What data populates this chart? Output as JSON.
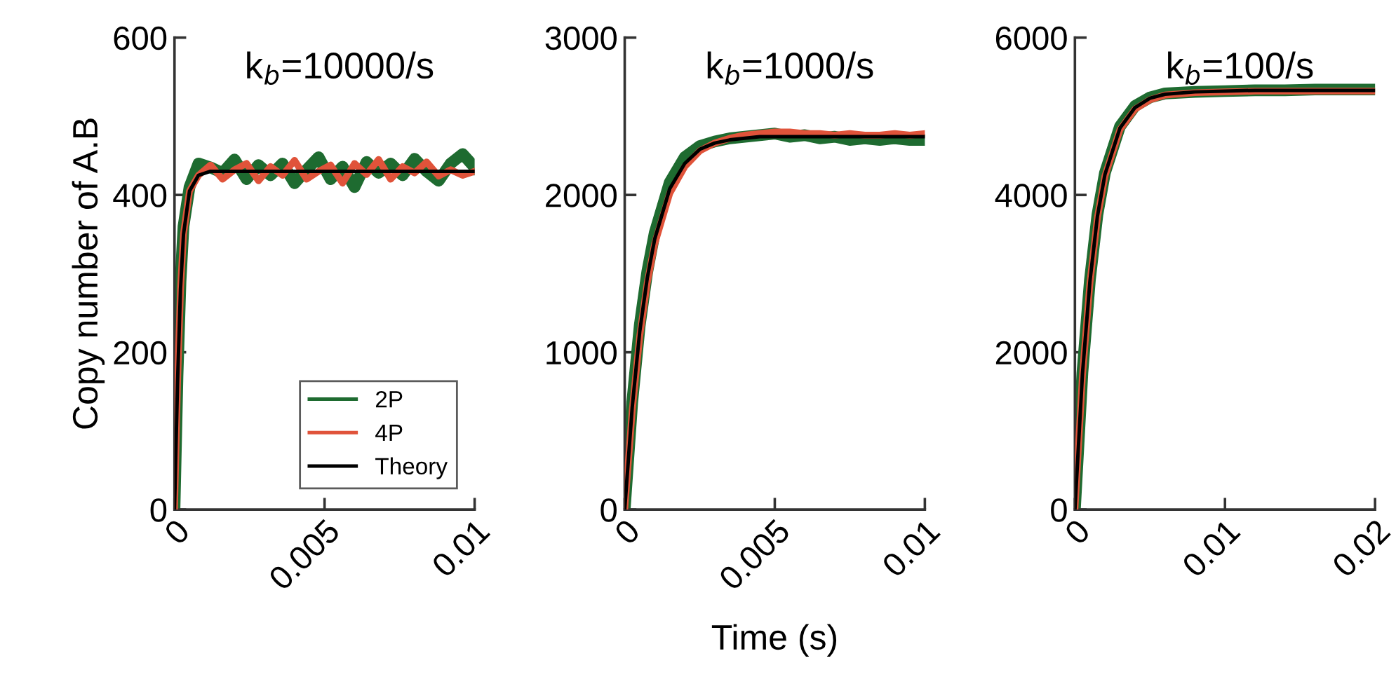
{
  "chart_data": [
    {
      "type": "line",
      "title": "k$_{b}$=10000/s",
      "ylabel": "Copy number of A.B",
      "xlim": [
        0,
        0.01
      ],
      "ylim": [
        0,
        600
      ],
      "xticks": [
        0,
        0.005,
        0.01
      ],
      "yticks": [
        0,
        200,
        400,
        600
      ],
      "grid": false,
      "legend": "bottom right",
      "marker": "none",
      "line_style": "solid",
      "x": [
        0,
        0.0001,
        0.0002,
        0.0003,
        0.0005,
        0.0008,
        0.0012,
        0.0016,
        0.002,
        0.0024,
        0.0028,
        0.0032,
        0.0036,
        0.004,
        0.0044,
        0.0048,
        0.0052,
        0.0056,
        0.006,
        0.0064,
        0.0068,
        0.0072,
        0.0076,
        0.008,
        0.0084,
        0.0088,
        0.0092,
        0.0096,
        0.01
      ],
      "series": [
        {
          "name": "2P",
          "color": "#1e6b30",
          "values": [
            0,
            170,
            290,
            360,
            410,
            440,
            435,
            428,
            445,
            420,
            438,
            425,
            440,
            415,
            432,
            448,
            420,
            436,
            410,
            442,
            428,
            440,
            425,
            446,
            430,
            418,
            440,
            452,
            435
          ]
        },
        {
          "name": "4P",
          "color": "#e0533a",
          "values": [
            0,
            160,
            280,
            350,
            405,
            425,
            438,
            420,
            432,
            440,
            418,
            436,
            425,
            444,
            420,
            430,
            438,
            415,
            440,
            426,
            445,
            420,
            436,
            428,
            442,
            424,
            432,
            425,
            430
          ]
        },
        {
          "name": "Theory",
          "color": "#000000",
          "values": [
            0,
            160,
            280,
            350,
            405,
            425,
            430,
            430,
            430,
            430,
            430,
            430,
            430,
            430,
            430,
            430,
            430,
            430,
            430,
            430,
            430,
            430,
            430,
            430,
            430,
            430,
            430,
            430,
            430
          ]
        }
      ]
    },
    {
      "type": "line",
      "title": "k$_{b}$=1000/s",
      "xlabel": "Time (s)",
      "xlim": [
        0,
        0.01
      ],
      "ylim": [
        0,
        3000
      ],
      "xticks": [
        0,
        0.005,
        0.01
      ],
      "yticks": [
        0,
        1000,
        2000,
        3000
      ],
      "grid": false,
      "marker": "none",
      "line_style": "solid",
      "x": [
        0,
        0.00025,
        0.0005,
        0.00075,
        0.001,
        0.0015,
        0.002,
        0.0025,
        0.003,
        0.0035,
        0.004,
        0.0045,
        0.005,
        0.0055,
        0.006,
        0.0065,
        0.007,
        0.0075,
        0.008,
        0.0085,
        0.009,
        0.0095,
        0.01
      ],
      "series": [
        {
          "color": "#1e6b30",
          "values": [
            0,
            680,
            1170,
            1510,
            1760,
            2080,
            2240,
            2310,
            2340,
            2360,
            2370,
            2380,
            2390,
            2370,
            2380,
            2360,
            2370,
            2350,
            2360,
            2350,
            2360,
            2350,
            2350
          ]
        },
        {
          "color": "#e0533a",
          "values": [
            0,
            630,
            1100,
            1440,
            1690,
            2010,
            2180,
            2280,
            2330,
            2360,
            2380,
            2390,
            2400,
            2400,
            2390,
            2390,
            2380,
            2390,
            2380,
            2380,
            2390,
            2380,
            2390
          ]
        },
        {
          "color": "#000000",
          "values": [
            0,
            650,
            1130,
            1470,
            1720,
            2040,
            2200,
            2290,
            2330,
            2350,
            2360,
            2370,
            2370,
            2370,
            2370,
            2370,
            2370,
            2370,
            2370,
            2370,
            2370,
            2370,
            2370
          ]
        }
      ]
    },
    {
      "type": "line",
      "title": "k$_{b}$=100/s",
      "xlim": [
        0,
        0.02
      ],
      "ylim": [
        0,
        6000
      ],
      "xticks": [
        0,
        0.01,
        0.02
      ],
      "yticks": [
        0,
        2000,
        4000,
        6000
      ],
      "grid": false,
      "marker": "none",
      "line_style": "solid",
      "x": [
        0,
        0.0005,
        0.001,
        0.0015,
        0.002,
        0.003,
        0.004,
        0.005,
        0.006,
        0.008,
        0.01,
        0.012,
        0.014,
        0.016,
        0.018,
        0.02
      ],
      "series": [
        {
          "color": "#1e6b30",
          "values": [
            0,
            1740,
            2920,
            3750,
            4280,
            4870,
            5130,
            5240,
            5290,
            5310,
            5320,
            5330,
            5330,
            5340,
            5340,
            5340
          ]
        },
        {
          "color": "#e0533a",
          "values": [
            0,
            1700,
            2880,
            3710,
            4240,
            4830,
            5090,
            5210,
            5270,
            5300,
            5310,
            5320,
            5320,
            5320,
            5320,
            5320
          ]
        },
        {
          "color": "#000000",
          "values": [
            0,
            1720,
            2900,
            3730,
            4260,
            4850,
            5110,
            5230,
            5280,
            5310,
            5320,
            5330,
            5330,
            5330,
            5330,
            5330
          ]
        }
      ]
    }
  ]
}
